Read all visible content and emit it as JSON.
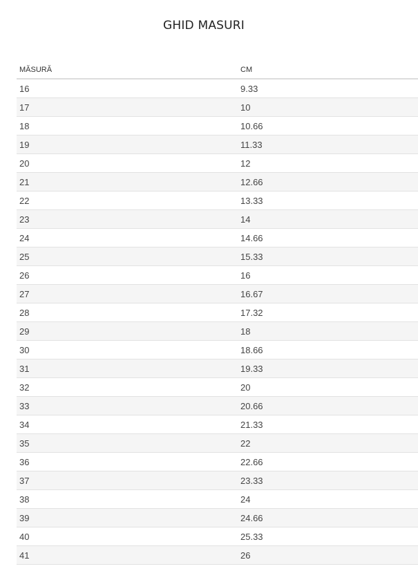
{
  "title": "GHID MASURI",
  "table": {
    "headers": [
      "MĂSURĂ",
      "CM"
    ],
    "rows": [
      [
        "16",
        "9.33"
      ],
      [
        "17",
        "10"
      ],
      [
        "18",
        "10.66"
      ],
      [
        "19",
        "11.33"
      ],
      [
        "20",
        "12"
      ],
      [
        "21",
        "12.66"
      ],
      [
        "22",
        "13.33"
      ],
      [
        "23",
        "14"
      ],
      [
        "24",
        "14.66"
      ],
      [
        "25",
        "15.33"
      ],
      [
        "26",
        "16"
      ],
      [
        "27",
        "16.67"
      ],
      [
        "28",
        "17.32"
      ],
      [
        "29",
        "18"
      ],
      [
        "30",
        "18.66"
      ],
      [
        "31",
        "19.33"
      ],
      [
        "32",
        "20"
      ],
      [
        "33",
        "20.66"
      ],
      [
        "34",
        "21.33"
      ],
      [
        "35",
        "22"
      ],
      [
        "36",
        "22.66"
      ],
      [
        "37",
        "23.33"
      ],
      [
        "38",
        "24"
      ],
      [
        "39",
        "24.66"
      ],
      [
        "40",
        "25.33"
      ],
      [
        "41",
        "26"
      ]
    ]
  }
}
